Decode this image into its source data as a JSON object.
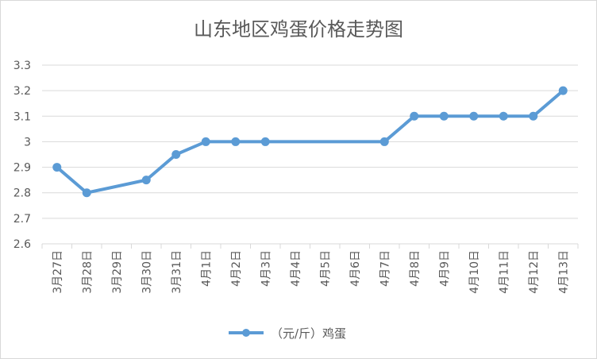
{
  "chart_data": {
    "type": "line",
    "title": "山东地区鸡蛋价格走势图",
    "xlabel": "",
    "ylabel": "",
    "categories": [
      "3月27日",
      "3月28日",
      "3月29日",
      "3月30日",
      "3月31日",
      "4月1日",
      "4月2日",
      "4月3日",
      "4月4日",
      "4月5日",
      "4月6日",
      "4月7日",
      "4月8日",
      "4月9日",
      "4月10日",
      "4月11日",
      "4月12日",
      "4月13日"
    ],
    "series": [
      {
        "name": "（元/斤）鸡蛋",
        "values": [
          2.9,
          2.8,
          null,
          2.85,
          2.95,
          3.0,
          3.0,
          3.0,
          null,
          null,
          null,
          3.0,
          3.1,
          3.1,
          3.1,
          3.1,
          3.1,
          3.2
        ],
        "color": "#5b9bd5"
      }
    ],
    "ylim": [
      2.6,
      3.3
    ],
    "yticks": [
      "2.6",
      "2.7",
      "2.8",
      "2.9",
      "3",
      "3.1",
      "3.2",
      "3.3"
    ],
    "grid": true,
    "legend": "bottom"
  }
}
